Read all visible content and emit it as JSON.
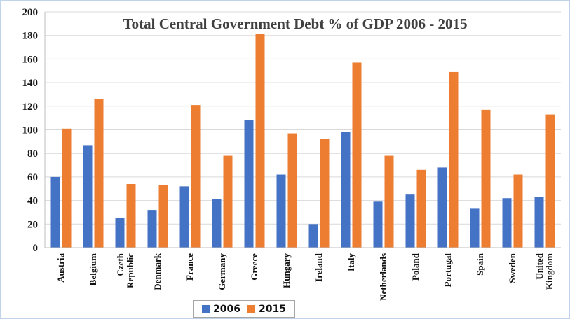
{
  "chart_data": {
    "type": "bar",
    "title": "Total Central Government Debt % of GDP 2006 - 2015",
    "categories": [
      "Austria",
      "Belgium",
      "Czeth Republic",
      "Denmark",
      "France",
      "Germany",
      "Greece",
      "Hungary",
      "Ireland",
      "Italy",
      "Netherlands",
      "Poland",
      "Portugal",
      "Spain",
      "Sweden",
      "United Kingdom"
    ],
    "category_lines": [
      [
        "Austria"
      ],
      [
        "Belgium"
      ],
      [
        "Czeth",
        "Republic"
      ],
      [
        "Denmark"
      ],
      [
        "France"
      ],
      [
        "Germany"
      ],
      [
        "Greece"
      ],
      [
        "Hungary"
      ],
      [
        "Ireland"
      ],
      [
        "Italy"
      ],
      [
        "Netherlands"
      ],
      [
        "Poland"
      ],
      [
        "Portugal"
      ],
      [
        "Spain"
      ],
      [
        "Sweden"
      ],
      [
        "United",
        "Kingdom"
      ]
    ],
    "series": [
      {
        "name": "2006",
        "color": "#4472c4",
        "values": [
          60,
          87,
          25,
          32,
          52,
          41,
          108,
          62,
          20,
          98,
          39,
          45,
          68,
          33,
          42,
          43
        ]
      },
      {
        "name": "2015",
        "color": "#ed7d31",
        "values": [
          101,
          126,
          54,
          53,
          121,
          78,
          181,
          97,
          92,
          157,
          78,
          66,
          149,
          117,
          62,
          113
        ]
      }
    ],
    "ylim": [
      0,
      200
    ],
    "yticks": [
      "0",
      "20",
      "40",
      "60",
      "80",
      "100",
      "120",
      "140",
      "160",
      "180",
      "200"
    ],
    "grid": true,
    "legend_position": "bottom-center"
  }
}
